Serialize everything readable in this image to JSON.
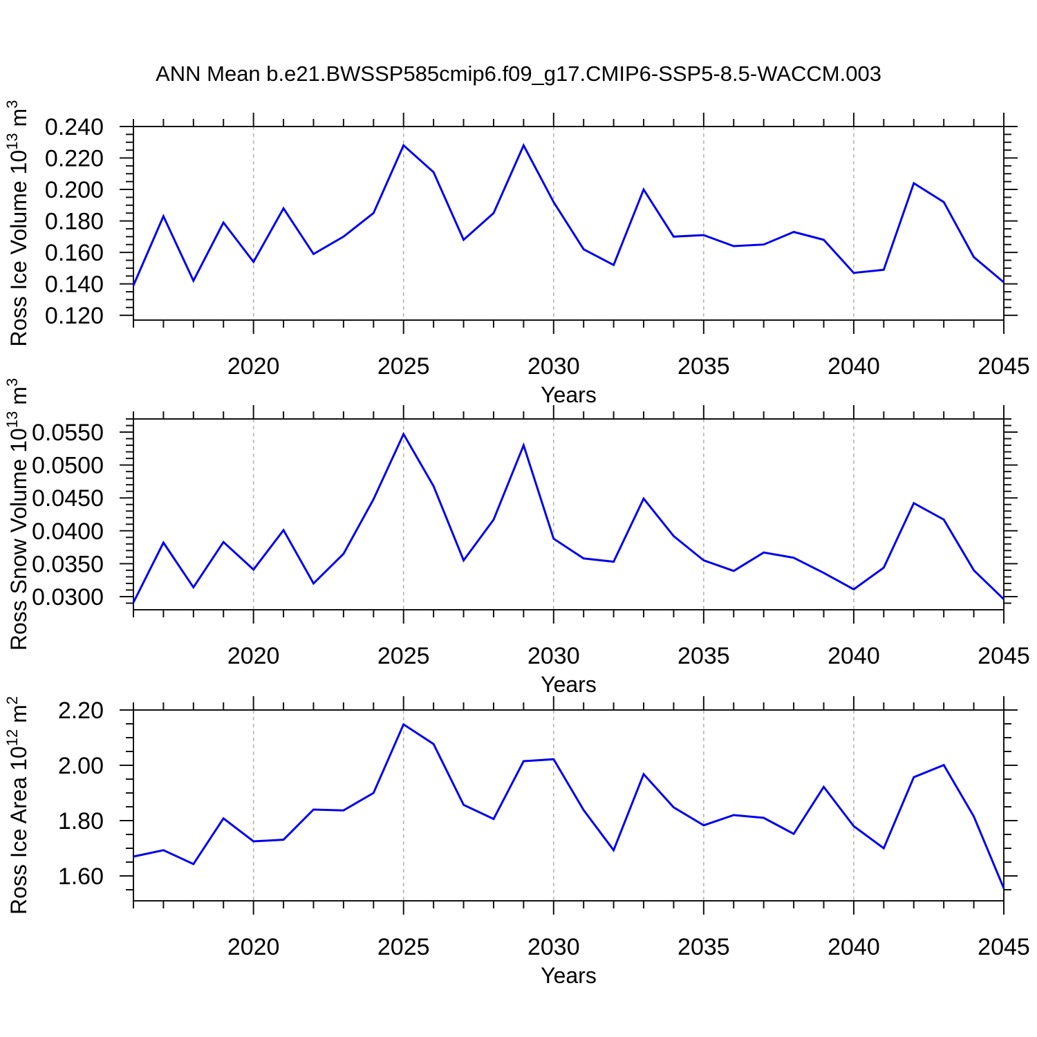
{
  "title": "ANN Mean b.e21.BWSSP585cmip6.f09_g17.CMIP6-SSP5-8.5-WACCM.003",
  "colors": {
    "line": "#0000f0",
    "frame": "#111111",
    "grid": "#b3b3b3",
    "text": "#000000"
  },
  "chart_data": [
    {
      "type": "line",
      "name": "ross-ice-volume",
      "ylabel_parts": [
        {
          "t": "Ross Ice Volume 10"
        },
        {
          "t": "13",
          "sup": true
        },
        {
          "t": " m"
        },
        {
          "t": "3",
          "sup": true
        }
      ],
      "xlabel": "Years",
      "xlim": [
        2016,
        2045
      ],
      "ylim": [
        0.117,
        0.24
      ],
      "x_major_ticks": [
        2020,
        2025,
        2030,
        2035,
        2040,
        2045
      ],
      "x_tick_labels": [
        "2020",
        "2025",
        "2030",
        "2035",
        "2040",
        "2045"
      ],
      "gridline_years": [
        2020,
        2025,
        2030,
        2035,
        2040
      ],
      "x_minor_step": 1,
      "y_major_ticks": [
        0.12,
        0.14,
        0.16,
        0.18,
        0.2,
        0.22,
        0.24
      ],
      "y_tick_labels": [
        "0.120",
        "0.140",
        "0.160",
        "0.180",
        "0.200",
        "0.220",
        "0.240"
      ],
      "y_minor_step": 0.005,
      "grid": "vertical-dashed",
      "legend": "none",
      "x": [
        2016,
        2017,
        2018,
        2019,
        2020,
        2021,
        2022,
        2023,
        2024,
        2025,
        2026,
        2027,
        2028,
        2029,
        2030,
        2031,
        2032,
        2033,
        2034,
        2035,
        2036,
        2037,
        2038,
        2039,
        2040,
        2041,
        2042,
        2043,
        2044,
        2045
      ],
      "values": [
        0.139,
        0.183,
        0.142,
        0.179,
        0.154,
        0.188,
        0.159,
        0.17,
        0.185,
        0.228,
        0.211,
        0.168,
        0.185,
        0.228,
        0.192,
        0.162,
        0.152,
        0.2,
        0.17,
        0.171,
        0.164,
        0.165,
        0.173,
        0.168,
        0.147,
        0.149,
        0.204,
        0.192,
        0.157,
        0.141
      ]
    },
    {
      "type": "line",
      "name": "ross-snow-volume",
      "ylabel_parts": [
        {
          "t": "Ross Snow Volume 10"
        },
        {
          "t": "13",
          "sup": true
        },
        {
          "t": " m"
        },
        {
          "t": "3",
          "sup": true
        }
      ],
      "xlabel": "Years",
      "xlim": [
        2016,
        2045
      ],
      "ylim": [
        0.028,
        0.057
      ],
      "x_major_ticks": [
        2020,
        2025,
        2030,
        2035,
        2040,
        2045
      ],
      "x_tick_labels": [
        "2020",
        "2025",
        "2030",
        "2035",
        "2040",
        "2045"
      ],
      "gridline_years": [
        2020,
        2025,
        2030,
        2035,
        2040
      ],
      "x_minor_step": 1,
      "y_major_ticks": [
        0.03,
        0.035,
        0.04,
        0.045,
        0.05,
        0.055
      ],
      "y_tick_labels": [
        "0.0300",
        "0.0350",
        "0.0400",
        "0.0450",
        "0.0500",
        "0.0550"
      ],
      "y_minor_step": 0.001,
      "grid": "vertical-dashed",
      "legend": "none",
      "x": [
        2016,
        2017,
        2018,
        2019,
        2020,
        2021,
        2022,
        2023,
        2024,
        2025,
        2026,
        2027,
        2028,
        2029,
        2030,
        2031,
        2032,
        2033,
        2034,
        2035,
        2036,
        2037,
        2038,
        2039,
        2040,
        2041,
        2042,
        2043,
        2044,
        2045
      ],
      "values": [
        0.0291,
        0.0382,
        0.0314,
        0.0383,
        0.0341,
        0.0401,
        0.032,
        0.0365,
        0.0448,
        0.0547,
        0.0468,
        0.0355,
        0.0417,
        0.053,
        0.0388,
        0.0358,
        0.0353,
        0.0449,
        0.0392,
        0.0355,
        0.0339,
        0.0367,
        0.0359,
        0.0336,
        0.0311,
        0.0344,
        0.0442,
        0.0417,
        0.034,
        0.0296
      ]
    },
    {
      "type": "line",
      "name": "ross-ice-area",
      "ylabel_parts": [
        {
          "t": "Ross Ice Area 10"
        },
        {
          "t": "12",
          "sup": true
        },
        {
          "t": " m"
        },
        {
          "t": "2",
          "sup": true
        }
      ],
      "xlabel": "Years",
      "xlim": [
        2016,
        2045
      ],
      "ylim": [
        1.51,
        2.2
      ],
      "x_major_ticks": [
        2020,
        2025,
        2030,
        2035,
        2040,
        2045
      ],
      "x_tick_labels": [
        "2020",
        "2025",
        "2030",
        "2035",
        "2040",
        "2045"
      ],
      "gridline_years": [
        2020,
        2025,
        2030,
        2035,
        2040
      ],
      "x_minor_step": 1,
      "y_major_ticks": [
        1.6,
        1.8,
        2.0,
        2.2
      ],
      "y_tick_labels": [
        "1.60",
        "1.80",
        "2.00",
        "2.20"
      ],
      "y_minor_step": 0.05,
      "grid": "vertical-dashed",
      "legend": "none",
      "x": [
        2016,
        2017,
        2018,
        2019,
        2020,
        2021,
        2022,
        2023,
        2024,
        2025,
        2026,
        2027,
        2028,
        2029,
        2030,
        2031,
        2032,
        2033,
        2034,
        2035,
        2036,
        2037,
        2038,
        2039,
        2040,
        2041,
        2042,
        2043,
        2044,
        2045
      ],
      "values": [
        1.67,
        1.693,
        1.643,
        1.808,
        1.725,
        1.731,
        1.84,
        1.837,
        1.9,
        2.148,
        2.077,
        1.857,
        1.806,
        2.015,
        2.022,
        1.838,
        1.693,
        1.968,
        1.848,
        1.783,
        1.82,
        1.81,
        1.752,
        1.922,
        1.78,
        1.7,
        1.957,
        2.001,
        1.815,
        1.555
      ]
    }
  ]
}
